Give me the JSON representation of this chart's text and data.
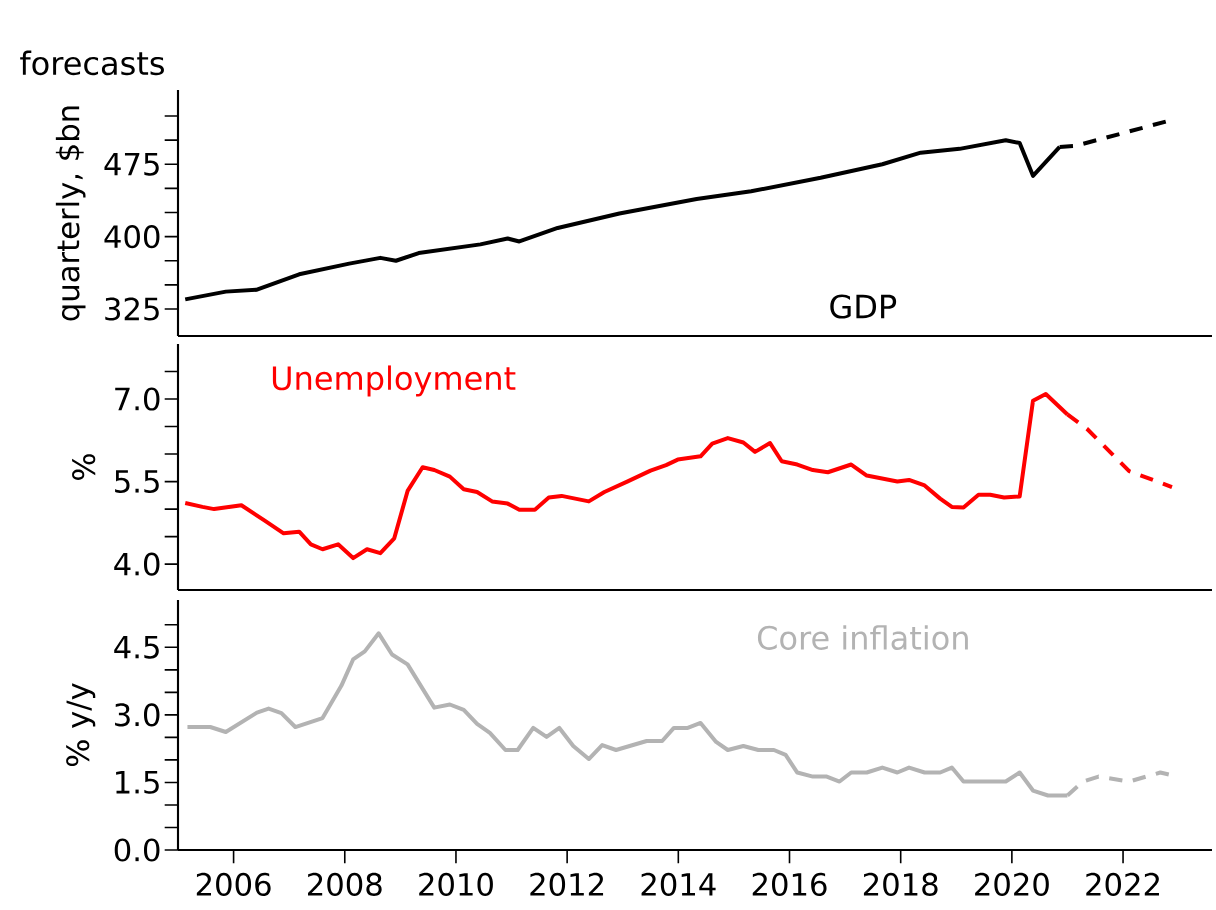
{
  "chart_data": [
    {
      "type": "line",
      "title": "forecasts",
      "ylabel": "quarterly, $bn",
      "xlim": [
        2005,
        2023.6
      ],
      "ylim": [
        297,
        552
      ],
      "tick_labels": "y",
      "yticks": [
        325,
        {
          "value": 350,
          "label": null
        },
        {
          "value": 375,
          "label": null
        },
        400,
        {
          "value": 425,
          "label": null
        },
        {
          "value": 450,
          "label": null
        },
        475,
        {
          "value": 500,
          "label": null
        },
        {
          "value": 525,
          "label": null
        }
      ],
      "series": [
        {
          "name": "GDP",
          "color": "#000000",
          "line_style": "solid",
          "x": [
            2005.13,
            2005.86,
            2006.42,
            2007.18,
            2008.08,
            2008.64,
            2008.92,
            2009.33,
            2010.44,
            2010.93,
            2011.14,
            2011.83,
            2012.94,
            2014.33,
            2015.31,
            2016.56,
            2017.67,
            2018.36,
            2019.06,
            2019.89,
            2020.14,
            2020.38,
            2020.86
          ],
          "values": [
            335,
            343,
            345,
            361,
            372,
            378,
            375,
            383,
            392,
            398,
            395,
            409,
            424,
            439,
            447,
            461,
            475,
            487,
            491,
            500,
            497,
            463,
            493
          ]
        },
        {
          "color": "#000000",
          "line_style": "dashed",
          "x": [
            2020.86,
            2021.14,
            2022.88
          ],
          "values": [
            493,
            494,
            521
          ]
        }
      ]
    },
    {
      "type": "line",
      "ylabel": "%",
      "xlim": [
        2005,
        2023.6
      ],
      "ylim": [
        3.53,
        8.0
      ],
      "tick_labels": "y",
      "yticks": [
        {
          "value": 4,
          "label": "4.0"
        },
        {
          "value": 4.5,
          "label": null
        },
        {
          "value": 5,
          "label": null
        },
        {
          "value": 5.5,
          "label": "5.5"
        },
        {
          "value": 6,
          "label": null
        },
        {
          "value": 6.5,
          "label": null
        },
        {
          "value": 7,
          "label": "7.0"
        },
        {
          "value": 7.5,
          "label": null
        }
      ],
      "series": [
        {
          "name": "Unemployment",
          "color": "#ff0000",
          "line_style": "solid",
          "x": [
            2005.13,
            2005.44,
            2005.65,
            2006.14,
            2006.56,
            2006.9,
            2007.18,
            2007.39,
            2007.6,
            2007.88,
            2008.15,
            2008.4,
            2008.64,
            2008.89,
            2009.13,
            2009.4,
            2009.61,
            2009.89,
            2010.14,
            2010.38,
            2010.65,
            2010.93,
            2011.14,
            2011.42,
            2011.67,
            2011.9,
            2012.39,
            2012.67,
            2013.08,
            2013.5,
            2013.78,
            2013.99,
            2014.4,
            2014.61,
            2014.89,
            2015.17,
            2015.38,
            2015.65,
            2015.86,
            2016.14,
            2016.42,
            2016.69,
            2017.11,
            2017.39,
            2017.94,
            2018.15,
            2018.43,
            2018.71,
            2018.92,
            2019.13,
            2019.4,
            2019.61,
            2019.86,
            2020.14,
            2020.38,
            2020.61,
            2021.0
          ],
          "values": [
            5.11,
            5.04,
            5.0,
            5.07,
            4.79,
            4.56,
            4.59,
            4.36,
            4.27,
            4.36,
            4.11,
            4.27,
            4.2,
            4.47,
            5.33,
            5.76,
            5.71,
            5.59,
            5.36,
            5.31,
            5.14,
            5.1,
            4.99,
            4.99,
            5.21,
            5.24,
            5.14,
            5.31,
            5.5,
            5.7,
            5.8,
            5.9,
            5.96,
            6.19,
            6.29,
            6.21,
            6.04,
            6.2,
            5.87,
            5.81,
            5.71,
            5.67,
            5.81,
            5.61,
            5.5,
            5.53,
            5.43,
            5.19,
            5.04,
            5.03,
            5.26,
            5.26,
            5.21,
            5.23,
            6.97,
            7.09,
            6.72
          ]
        },
        {
          "color": "#ff0000",
          "line_style": "dashed",
          "x": [
            2021.0,
            2021.35,
            2022.11,
            2022.88
          ],
          "values": [
            6.72,
            6.46,
            5.69,
            5.4
          ]
        }
      ]
    },
    {
      "type": "line",
      "ylabel": "% y/y",
      "xlim": [
        2005,
        2023.6
      ],
      "ylim": [
        0,
        5.55
      ],
      "xticks": [
        2006,
        2008,
        2010,
        2012,
        2014,
        2016,
        2018,
        2020,
        2022
      ],
      "yticks": [
        {
          "value": 0,
          "label": "0.0"
        },
        {
          "value": 0.5,
          "label": null
        },
        {
          "value": 1,
          "label": null
        },
        {
          "value": 1.5,
          "label": "1.5"
        },
        {
          "value": 2,
          "label": null
        },
        {
          "value": 2.5,
          "label": null
        },
        {
          "value": 3,
          "label": "3.0"
        },
        {
          "value": 3.5,
          "label": null
        },
        {
          "value": 4,
          "label": null
        },
        {
          "value": 4.5,
          "label": "4.5"
        },
        {
          "value": 5,
          "label": null
        }
      ],
      "series": [
        {
          "name": "Core inflation",
          "color": "#b3b3b3",
          "line_style": "solid",
          "x": [
            2005.17,
            2005.58,
            2005.86,
            2006.42,
            2006.63,
            2006.86,
            2007.11,
            2007.6,
            2007.94,
            2008.15,
            2008.36,
            2008.61,
            2008.85,
            2009.13,
            2009.61,
            2009.89,
            2010.14,
            2010.38,
            2010.61,
            2010.89,
            2011.11,
            2011.39,
            2011.63,
            2011.86,
            2012.11,
            2012.39,
            2012.63,
            2012.88,
            2013.43,
            2013.71,
            2013.92,
            2014.17,
            2014.4,
            2014.68,
            2014.89,
            2015.17,
            2015.44,
            2015.72,
            2015.93,
            2016.14,
            2016.42,
            2016.67,
            2016.9,
            2017.11,
            2017.39,
            2017.67,
            2017.94,
            2018.15,
            2018.43,
            2018.71,
            2018.92,
            2019.13,
            2019.89,
            2020.14,
            2020.38,
            2020.65,
            2021.0
          ],
          "values": [
            2.73,
            2.73,
            2.62,
            3.05,
            3.14,
            3.04,
            2.73,
            2.93,
            3.65,
            4.23,
            4.41,
            4.81,
            4.34,
            4.12,
            3.16,
            3.23,
            3.11,
            2.8,
            2.6,
            2.22,
            2.22,
            2.71,
            2.51,
            2.71,
            2.31,
            2.02,
            2.33,
            2.22,
            2.42,
            2.42,
            2.71,
            2.71,
            2.82,
            2.4,
            2.22,
            2.31,
            2.22,
            2.22,
            2.11,
            1.72,
            1.63,
            1.63,
            1.52,
            1.72,
            1.72,
            1.83,
            1.72,
            1.83,
            1.72,
            1.72,
            1.83,
            1.52,
            1.52,
            1.72,
            1.32,
            1.21,
            1.21
          ]
        },
        {
          "color": "#b3b3b3",
          "line_style": "dashed",
          "x": [
            2021.0,
            2021.28,
            2021.56,
            2022.11,
            2022.67,
            2022.88
          ],
          "values": [
            1.21,
            1.52,
            1.63,
            1.52,
            1.72,
            1.66
          ]
        }
      ]
    }
  ]
}
